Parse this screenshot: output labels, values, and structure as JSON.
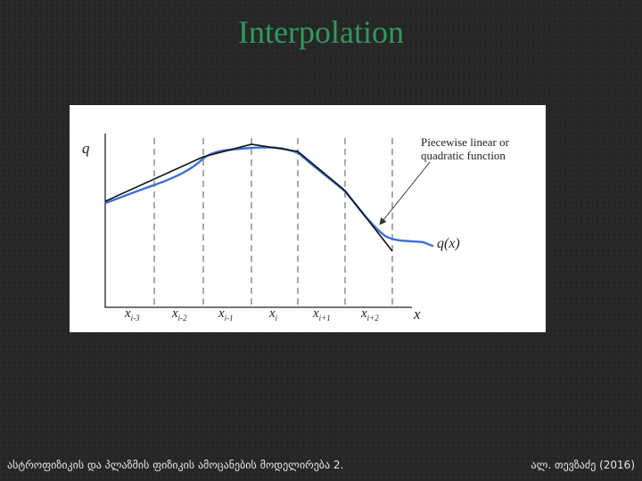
{
  "title": "Interpolation",
  "figure": {
    "y_label": "q",
    "x_label": "x",
    "annotation": "Piecewise linear or quadratic function",
    "curve_label": "q(x)",
    "x_ticks": [
      {
        "main": "x",
        "sub": "i-3"
      },
      {
        "main": "x",
        "sub": "i-2"
      },
      {
        "main": "x",
        "sub": "i-1"
      },
      {
        "main": "x",
        "sub": "i"
      },
      {
        "main": "x",
        "sub": "i+1"
      },
      {
        "main": "x",
        "sub": "i+2"
      }
    ]
  },
  "footer": {
    "left": "ასტროფიზიკის და პლაზმის ფიზიკის ამოცანების მოდელირება 2.",
    "right": "ალ. თევზაძე (2016)"
  }
}
